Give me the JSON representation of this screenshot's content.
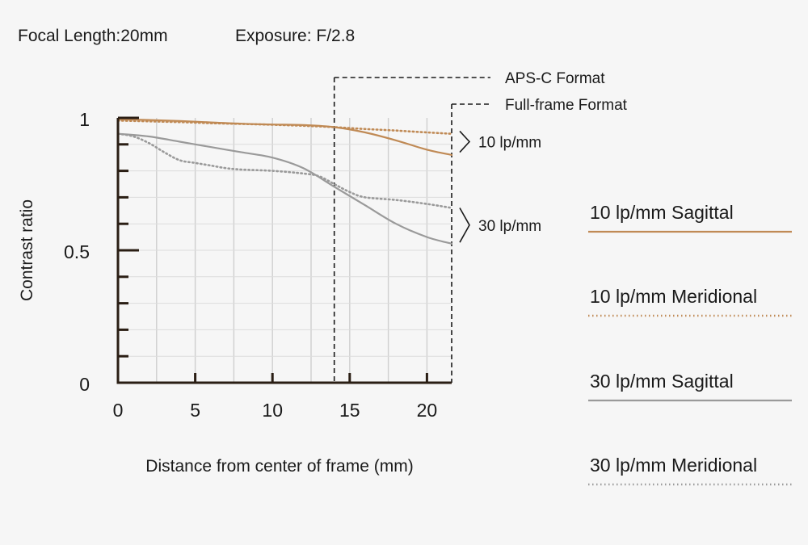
{
  "chart_data": {
    "type": "line",
    "header": {
      "focal_length": "Focal Length:20mm",
      "exposure": "Exposure: F/2.8"
    },
    "xlabel": "Distance from center of frame (mm)",
    "ylabel": "Contrast ratio",
    "xlim": [
      0,
      21.6
    ],
    "ylim": [
      0,
      1
    ],
    "x_ticks": [
      0,
      5,
      10,
      15,
      20
    ],
    "x_tick_labels": [
      "0",
      "5",
      "10",
      "15",
      "20"
    ],
    "y_ticks": [
      0,
      0.5,
      1
    ],
    "y_tick_labels": [
      "0",
      "0.5",
      "1"
    ],
    "grid": true,
    "format_markers": [
      {
        "label": "APS-C Format",
        "x": 14.0
      },
      {
        "label": "Full-frame Format",
        "x": 21.6
      }
    ],
    "group_labels": [
      {
        "label": "10 lp/mm",
        "y_range": [
          0.87,
          0.95
        ]
      },
      {
        "label": "30 lp/mm",
        "y_range": [
          0.53,
          0.66
        ]
      }
    ],
    "legend_placement": "right",
    "series": [
      {
        "name": "10 lp/mm Sagittal",
        "color": "#c08a55",
        "style": "solid",
        "x": [
          0,
          2,
          4,
          6,
          8,
          10,
          12,
          14,
          16,
          18,
          20,
          21.6
        ],
        "y": [
          0.995,
          0.992,
          0.988,
          0.983,
          0.978,
          0.975,
          0.973,
          0.965,
          0.945,
          0.915,
          0.88,
          0.86
        ]
      },
      {
        "name": "10 lp/mm Meridional",
        "color": "#c08a55",
        "style": "dotted",
        "x": [
          0,
          2,
          4,
          6,
          8,
          10,
          12,
          14,
          16,
          18,
          20,
          21.6
        ],
        "y": [
          0.99,
          0.987,
          0.984,
          0.98,
          0.977,
          0.974,
          0.97,
          0.965,
          0.958,
          0.952,
          0.945,
          0.94
        ]
      },
      {
        "name": "30 lp/mm Sagittal",
        "color": "#9a9a9a",
        "style": "solid",
        "x": [
          0,
          2,
          4,
          6,
          8,
          10,
          12,
          14,
          16,
          18,
          20,
          21.6
        ],
        "y": [
          0.94,
          0.93,
          0.91,
          0.89,
          0.87,
          0.85,
          0.81,
          0.74,
          0.67,
          0.6,
          0.55,
          0.525
        ]
      },
      {
        "name": "30 lp/mm Meridional",
        "color": "#9a9a9a",
        "style": "dotted",
        "x": [
          0,
          1,
          2,
          3,
          4,
          5,
          6,
          7,
          8,
          10,
          12,
          13,
          14,
          15,
          16,
          18,
          20,
          21.6
        ],
        "y": [
          0.94,
          0.93,
          0.905,
          0.87,
          0.84,
          0.83,
          0.82,
          0.81,
          0.805,
          0.8,
          0.79,
          0.78,
          0.75,
          0.72,
          0.7,
          0.69,
          0.675,
          0.66
        ]
      }
    ]
  }
}
